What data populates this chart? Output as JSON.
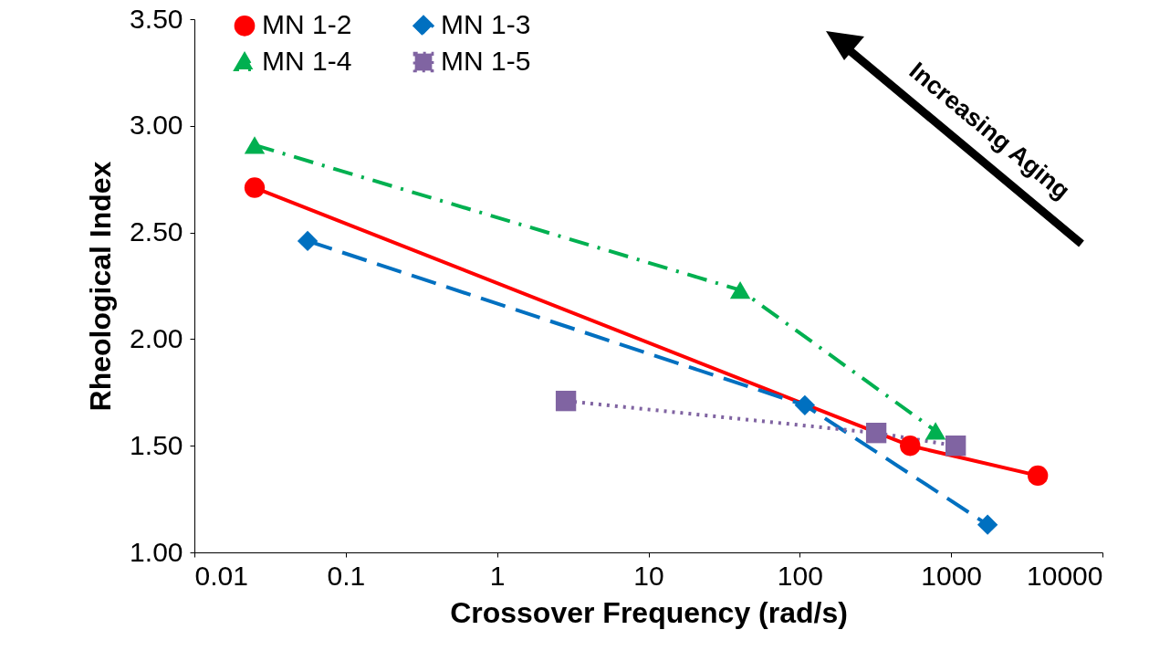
{
  "chart_data": {
    "type": "line",
    "xlabel": "Crossover Frequency (rad/s)",
    "ylabel": "Rheological Index",
    "log": "x",
    "xlim": [
      0.01,
      10000
    ],
    "xticks": [
      0.01,
      0.1,
      1,
      10,
      100,
      1000,
      10000
    ],
    "ylim": [
      1,
      3.5
    ],
    "yticks": [
      {
        "value": 1,
        "label": "1.00"
      },
      {
        "value": 1.5,
        "label": "1.50"
      },
      {
        "value": 2,
        "label": "2.00"
      },
      {
        "value": 2.5,
        "label": "2.50"
      },
      {
        "value": 3,
        "label": "3.00"
      },
      {
        "value": 3.5,
        "label": "3.50"
      }
    ],
    "grid": false,
    "legend": "top left",
    "series": [
      {
        "name": "MN 1-2",
        "color": "#ff0000",
        "marker": "circle",
        "line_style": "solid",
        "x": [
          0.025,
          536,
          3740
        ],
        "values": [
          2.71,
          1.5,
          1.36
        ]
      },
      {
        "name": "MN 1-3",
        "color": "#0070c0",
        "marker": "diamond",
        "line_style": "dashed",
        "x": [
          0.056,
          108,
          1742
        ],
        "values": [
          2.46,
          1.69,
          1.13
        ]
      },
      {
        "name": "MN 1-4",
        "color": "#00b050",
        "marker": "triangle",
        "line_style": "dashdot",
        "x": [
          0.025,
          40.4,
          789
        ],
        "values": [
          2.91,
          2.23,
          1.57
        ]
      },
      {
        "name": "MN 1-5",
        "color": "#8064a2",
        "marker": "square",
        "line_style": "dotted",
        "x": [
          2.85,
          320,
          1072
        ],
        "values": [
          1.71,
          1.56,
          1.5
        ]
      }
    ],
    "annotations": [
      "Increasing Aging"
    ]
  }
}
